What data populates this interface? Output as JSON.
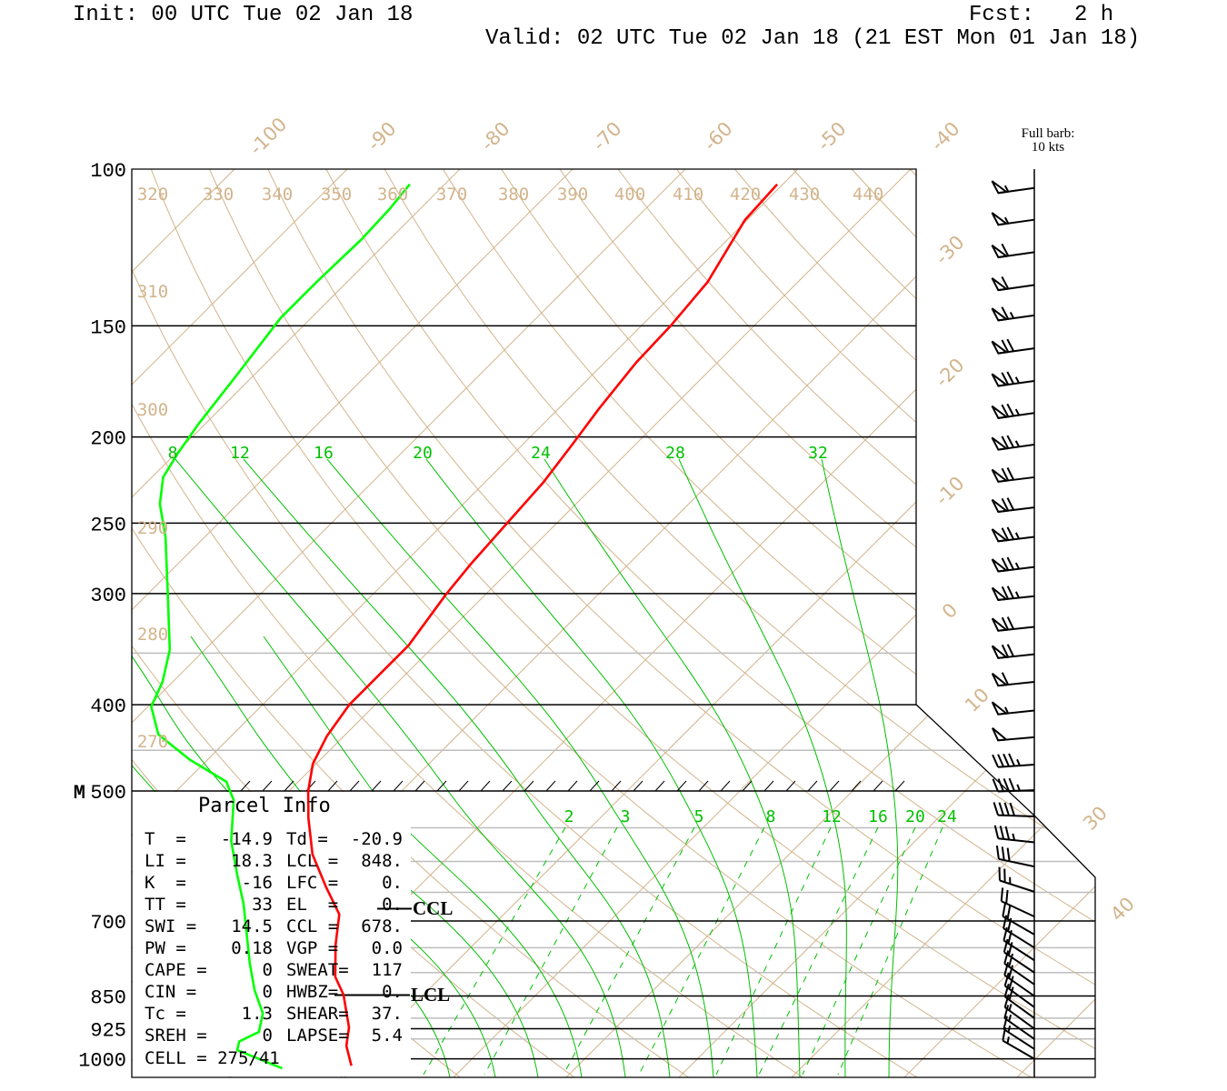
{
  "header": {
    "init": "Init: 00 UTC Tue 02 Jan 18",
    "fcst_label": "Fcst:",
    "fcst_value": "2 h",
    "valid": "Valid: 02 UTC Tue 02 Jan 18 (21 EST Mon 01 Jan 18)"
  },
  "barb_legend": {
    "line1": "Full barb:",
    "line2": "10 kts"
  },
  "parcel_info": {
    "title": "Parcel Info",
    "rows": [
      {
        "l1": "T  =",
        "v1": "-14.9",
        "l2": "Td =",
        "v2": "-20.9"
      },
      {
        "l1": "LI =",
        "v1": "18.3",
        "l2": "LCL =",
        "v2": "848."
      },
      {
        "l1": "K  =",
        "v1": "-16",
        "l2": "LFC =",
        "v2": "0."
      },
      {
        "l1": "TT =",
        "v1": "33",
        "l2": "EL  =",
        "v2": "0."
      },
      {
        "l1": "SWI =",
        "v1": "14.5",
        "l2": "CCL =",
        "v2": "678."
      },
      {
        "l1": "PW =",
        "v1": "0.18",
        "l2": "VGP =",
        "v2": "0.0"
      },
      {
        "l1": "CAPE =",
        "v1": "0",
        "l2": "SWEAT=",
        "v2": "117"
      },
      {
        "l1": "CIN =",
        "v1": "0",
        "l2": "HWBZ=",
        "v2": "0."
      },
      {
        "l1": "Tc =",
        "v1": "1.3",
        "l2": "SHEAR=",
        "v2": "37."
      },
      {
        "l1": "SREH =",
        "v1": "0",
        "l2": "LAPSE=",
        "v2": "5.4"
      }
    ],
    "cell": "CELL = 275/41"
  },
  "markers": {
    "ccl": "CCL",
    "lcl": "LCL",
    "ccl_p": 678,
    "lcl_p": 848
  },
  "colors": {
    "temperature": "#ff0000",
    "dewpoint": "#00ff00",
    "grid_tan": "#d2b48c",
    "grid_green": "#00c000",
    "gray": "#bdbdbd"
  },
  "chart_data": {
    "type": "line",
    "yaxis": {
      "quantity": "pressure (hPa)",
      "scale": "log",
      "ylim": [
        1050,
        100
      ],
      "tick_labels": [
        "100",
        "150",
        "200",
        "250",
        "300",
        "400",
        "500",
        "700",
        "850",
        "925",
        "1000"
      ],
      "tick_values": [
        100,
        150,
        200,
        250,
        300,
        400,
        500,
        700,
        850,
        925,
        1000
      ],
      "extra_label": "M"
    },
    "pressure_lines": {
      "black": [
        150,
        200,
        250,
        300,
        400,
        500,
        700,
        850,
        925,
        1000
      ],
      "gray": [
        350,
        450,
        550,
        600,
        650,
        750,
        800,
        900,
        950
      ]
    },
    "isotherm_labels": [
      "-100",
      "-90",
      "-80",
      "-70",
      "-60",
      "-50",
      "-40",
      "-30",
      "-20",
      "-10",
      "0",
      "10",
      "30",
      "40"
    ],
    "dry_adiabat_labels": [
      "320",
      "330",
      "340",
      "350",
      "360",
      "370",
      "380",
      "390",
      "400",
      "410",
      "420",
      "430",
      "440",
      "310",
      "300",
      "290",
      "280",
      "270"
    ],
    "moist_adiabat_labels": [
      "8",
      "12",
      "16",
      "20",
      "24",
      "28",
      "32"
    ],
    "mixing_ratio_labels": [
      "2",
      "3",
      "5",
      "8",
      "12",
      "16",
      "20",
      "24"
    ],
    "series": [
      {
        "name": "Temperature",
        "points": [
          [
            104,
            -50.5
          ],
          [
            114,
            -50.2
          ],
          [
            134,
            -48.0
          ],
          [
            150,
            -47.4
          ],
          [
            165,
            -47.2
          ],
          [
            186,
            -46.4
          ],
          [
            204,
            -45.6
          ],
          [
            225,
            -44.8
          ],
          [
            250,
            -44.4
          ],
          [
            278,
            -44.0
          ],
          [
            301,
            -43.5
          ],
          [
            343,
            -42.3
          ],
          [
            368,
            -42.3
          ],
          [
            400,
            -42.3
          ],
          [
            434,
            -41.5
          ],
          [
            466,
            -40.3
          ],
          [
            500,
            -38.3
          ],
          [
            536,
            -35.9
          ],
          [
            589,
            -32.3
          ],
          [
            641,
            -28.2
          ],
          [
            688,
            -24.6
          ],
          [
            745,
            -22.2
          ],
          [
            809,
            -19.4
          ],
          [
            847,
            -17.1
          ],
          [
            922,
            -13.7
          ],
          [
            967,
            -12.3
          ],
          [
            1018,
            -10.1
          ]
        ]
      },
      {
        "name": "Dewpoint",
        "points": [
          [
            104,
            -83.1
          ],
          [
            111,
            -82.7
          ],
          [
            120,
            -82.5
          ],
          [
            134,
            -82.7
          ],
          [
            147,
            -82.7
          ],
          [
            171,
            -81.5
          ],
          [
            193,
            -80.6
          ],
          [
            209,
            -79.8
          ],
          [
            222,
            -79.0
          ],
          [
            238,
            -76.9
          ],
          [
            259,
            -73.5
          ],
          [
            298,
            -68.5
          ],
          [
            347,
            -63.1
          ],
          [
            377,
            -60.9
          ],
          [
            402,
            -59.7
          ],
          [
            432,
            -56.6
          ],
          [
            461,
            -51.6
          ],
          [
            488,
            -46.4
          ],
          [
            512,
            -44.1
          ],
          [
            569,
            -40.7
          ],
          [
            619,
            -37.3
          ],
          [
            670,
            -34.0
          ],
          [
            781,
            -28.2
          ],
          [
            837,
            -25.4
          ],
          [
            889,
            -22.6
          ],
          [
            933,
            -21.3
          ],
          [
            956,
            -22.2
          ],
          [
            978,
            -21.6
          ],
          [
            1025,
            -16.0
          ]
        ]
      }
    ],
    "wind_barbs": [
      {
        "p": 105,
        "dir": 262,
        "kt": 55
      },
      {
        "p": 114,
        "dir": 262,
        "kt": 55
      },
      {
        "p": 124,
        "dir": 262,
        "kt": 60
      },
      {
        "p": 135,
        "dir": 262,
        "kt": 60
      },
      {
        "p": 146,
        "dir": 262,
        "kt": 65
      },
      {
        "p": 159,
        "dir": 262,
        "kt": 70
      },
      {
        "p": 173,
        "dir": 262,
        "kt": 75
      },
      {
        "p": 188,
        "dir": 262,
        "kt": 75
      },
      {
        "p": 204,
        "dir": 262,
        "kt": 75
      },
      {
        "p": 222,
        "dir": 263,
        "kt": 70
      },
      {
        "p": 240,
        "dir": 263,
        "kt": 70
      },
      {
        "p": 259,
        "dir": 263,
        "kt": 75
      },
      {
        "p": 280,
        "dir": 263,
        "kt": 75
      },
      {
        "p": 302,
        "dir": 264,
        "kt": 75
      },
      {
        "p": 327,
        "dir": 264,
        "kt": 70
      },
      {
        "p": 351,
        "dir": 264,
        "kt": 70
      },
      {
        "p": 377,
        "dir": 264,
        "kt": 60
      },
      {
        "p": 406,
        "dir": 264,
        "kt": 55
      },
      {
        "p": 435,
        "dir": 265,
        "kt": 50
      },
      {
        "p": 467,
        "dir": 266,
        "kt": 45
      },
      {
        "p": 499,
        "dir": 268,
        "kt": 45
      },
      {
        "p": 534,
        "dir": 272,
        "kt": 40
      },
      {
        "p": 571,
        "dir": 276,
        "kt": 35
      },
      {
        "p": 608,
        "dir": 282,
        "kt": 30
      },
      {
        "p": 649,
        "dir": 288,
        "kt": 25
      },
      {
        "p": 692,
        "dir": 295,
        "kt": 20
      },
      {
        "p": 725,
        "dir": 300,
        "kt": 20
      },
      {
        "p": 750,
        "dir": 302,
        "kt": 20
      },
      {
        "p": 775,
        "dir": 303,
        "kt": 20
      },
      {
        "p": 800,
        "dir": 304,
        "kt": 20
      },
      {
        "p": 825,
        "dir": 305,
        "kt": 20
      },
      {
        "p": 850,
        "dir": 305,
        "kt": 20
      },
      {
        "p": 875,
        "dir": 306,
        "kt": 20
      },
      {
        "p": 900,
        "dir": 306,
        "kt": 20
      },
      {
        "p": 925,
        "dir": 306,
        "kt": 15
      },
      {
        "p": 950,
        "dir": 305,
        "kt": 15
      },
      {
        "p": 975,
        "dir": 303,
        "kt": 15
      },
      {
        "p": 1000,
        "dir": 300,
        "kt": 15
      }
    ]
  }
}
